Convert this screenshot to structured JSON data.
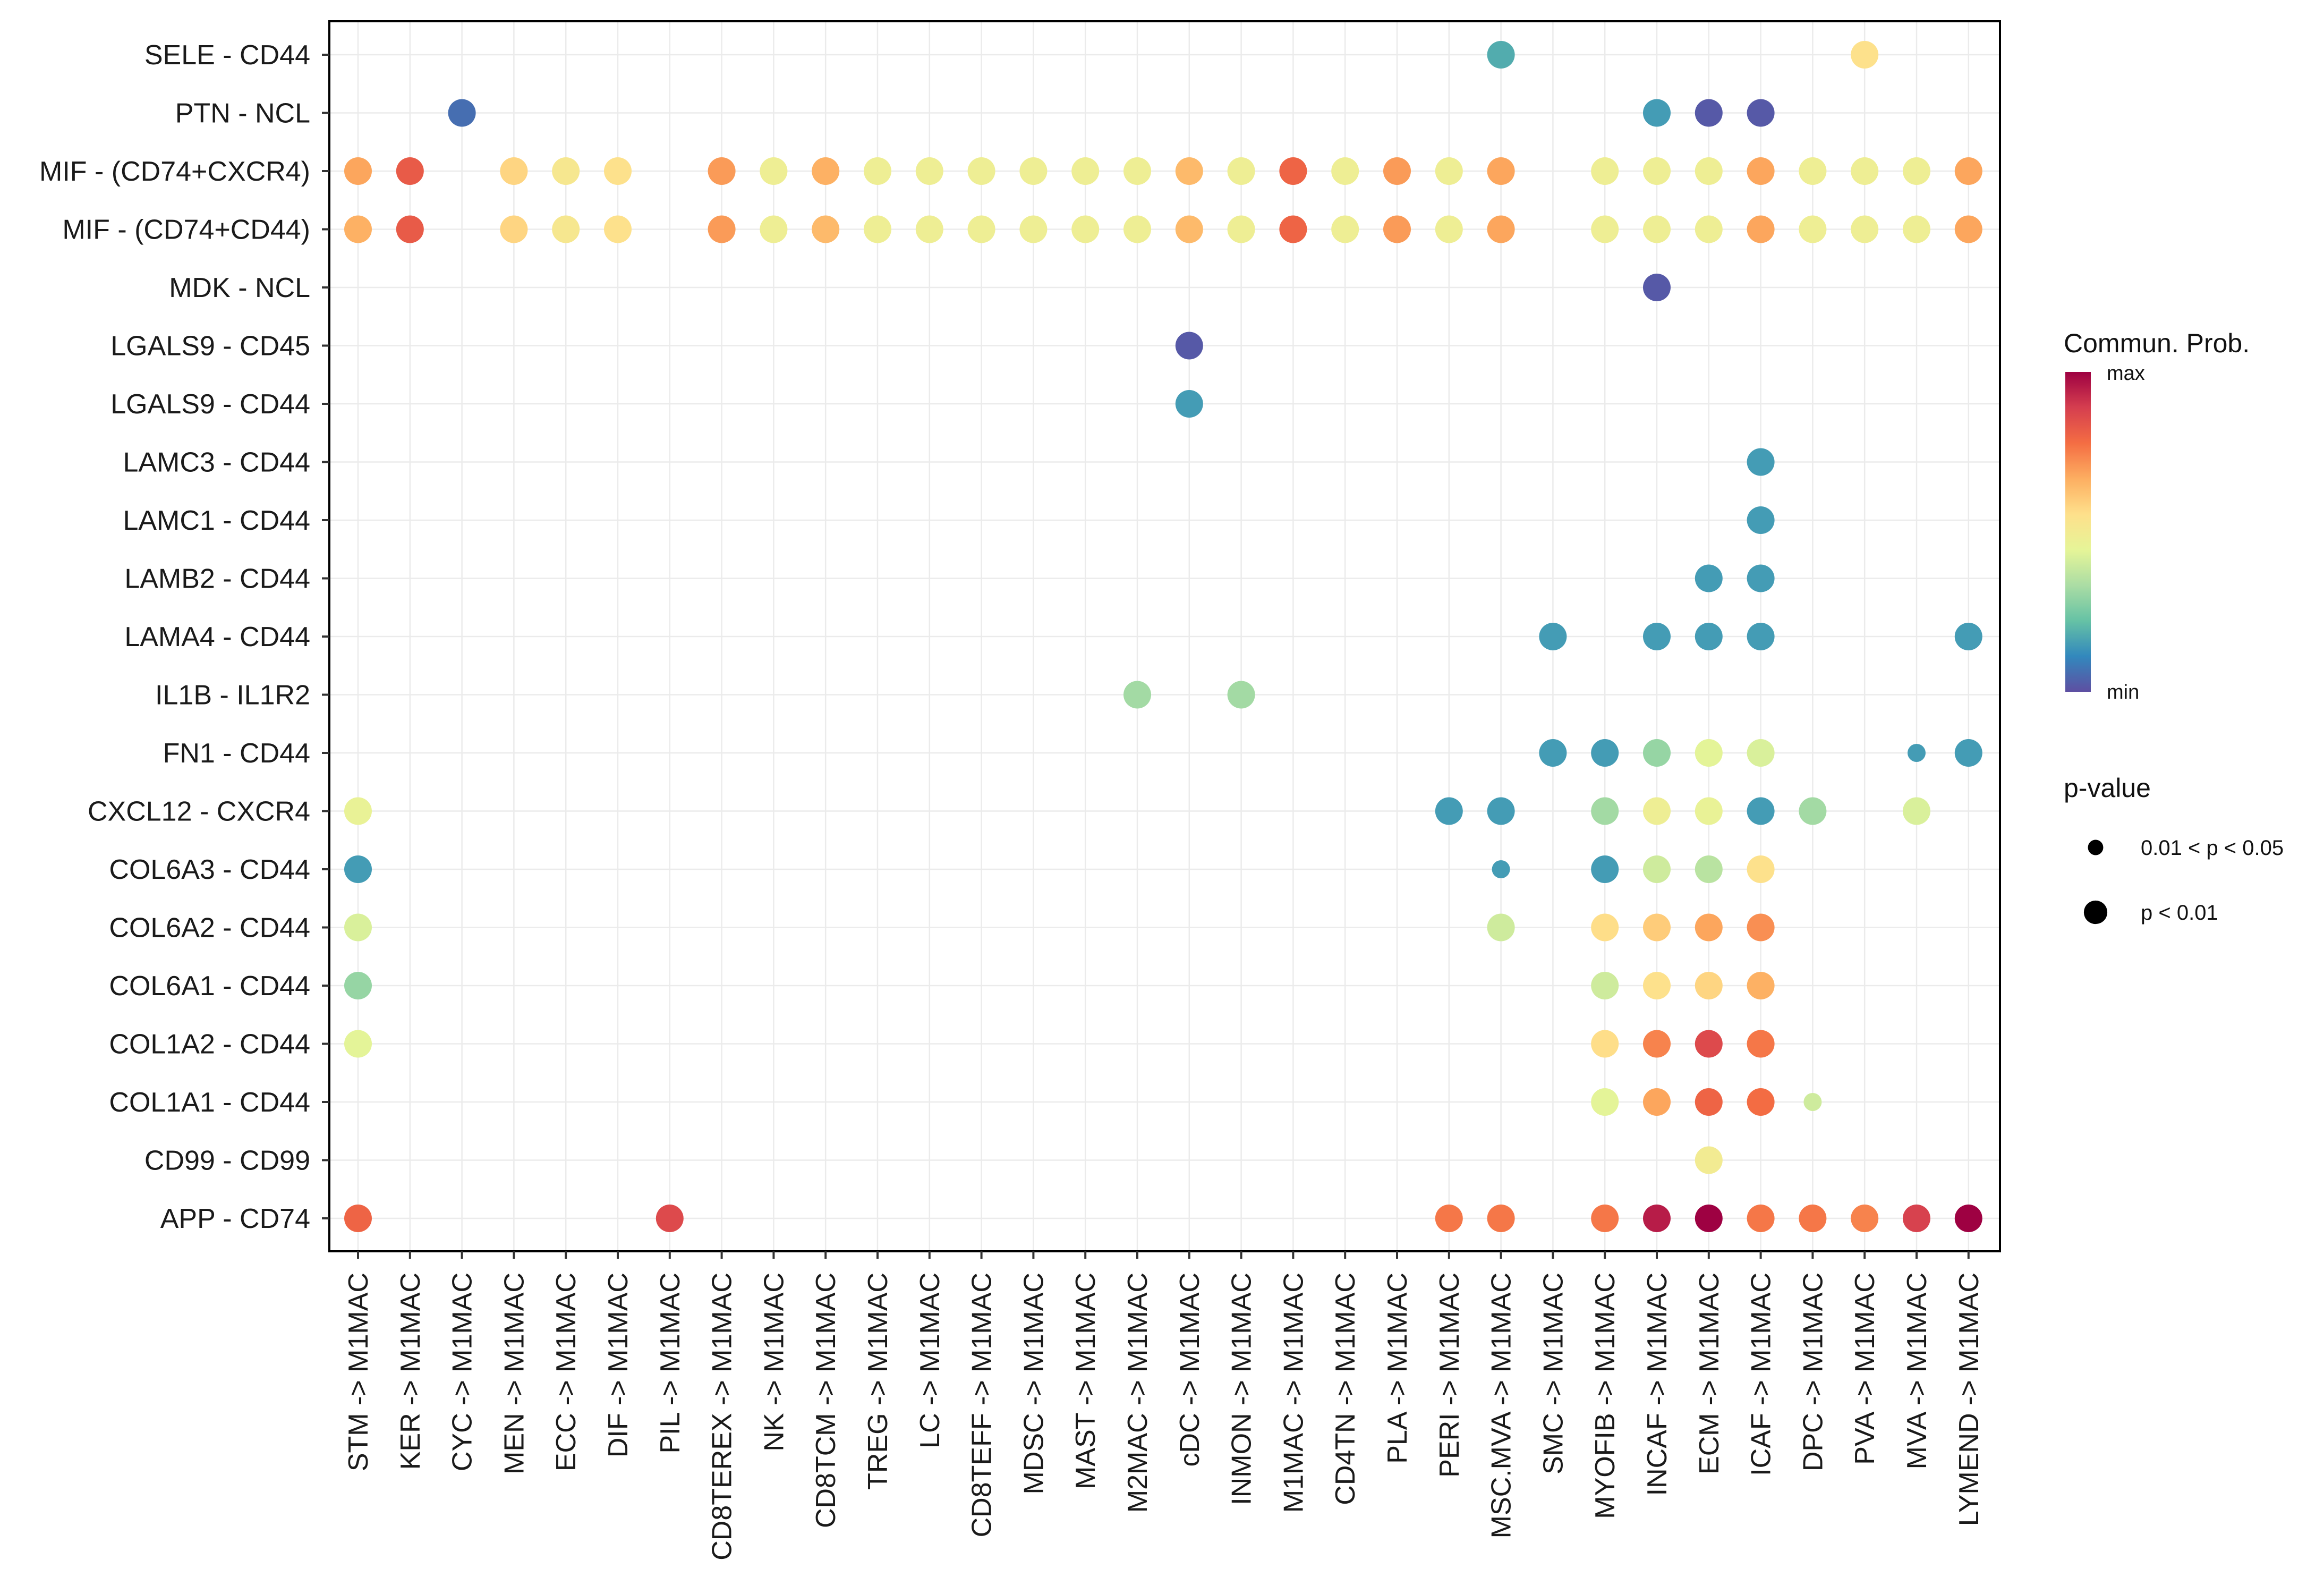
{
  "chart_data": {
    "type": "scatter",
    "subtype": "dot-plot",
    "x_categories": [
      "STM -> M1MAC",
      "KER -> M1MAC",
      "CYC -> M1MAC",
      "MEN -> M1MAC",
      "ECC -> M1MAC",
      "DIF -> M1MAC",
      "PIL -> M1MAC",
      "CD8TEREX -> M1MAC",
      "NK -> M1MAC",
      "CD8TCM -> M1MAC",
      "TREG -> M1MAC",
      "LC -> M1MAC",
      "CD8TEFF -> M1MAC",
      "MDSC -> M1MAC",
      "MAST -> M1MAC",
      "M2MAC -> M1MAC",
      "cDC -> M1MAC",
      "INMON -> M1MAC",
      "M1MAC -> M1MAC",
      "CD4TN -> M1MAC",
      "PLA -> M1MAC",
      "PERI -> M1MAC",
      "MSC.MVA -> M1MAC",
      "SMC -> M1MAC",
      "MYOFIB -> M1MAC",
      "INCAF -> M1MAC",
      "ECM -> M1MAC",
      "ICAF -> M1MAC",
      "DPC -> M1MAC",
      "PVA -> M1MAC",
      "MVA -> M1MAC",
      "LYMEND -> M1MAC"
    ],
    "y_categories": [
      "APP - CD74",
      "CD99 - CD99",
      "COL1A1 - CD44",
      "COL1A2 - CD44",
      "COL6A1 - CD44",
      "COL6A2 - CD44",
      "COL6A3 - CD44",
      "CXCL12 - CXCR4",
      "FN1 - CD44",
      "IL1B - IL1R2",
      "LAMA4 - CD44",
      "LAMB2 - CD44",
      "LAMC1 - CD44",
      "LAMC3 - CD44",
      "LGALS9 - CD44",
      "LGALS9 - CD45",
      "MDK - NCL",
      "MIF - (CD74+CD44)",
      "MIF - (CD74+CXCR4)",
      "PTN - NCL",
      "SELE - CD44"
    ],
    "points": [
      {
        "row": 20,
        "col": 22,
        "prob": 0.18,
        "p": 2
      },
      {
        "row": 20,
        "col": 29,
        "prob": 0.55,
        "p": 2
      },
      {
        "row": 19,
        "col": 2,
        "prob": 0.06,
        "p": 2
      },
      {
        "row": 19,
        "col": 25,
        "prob": 0.15,
        "p": 2
      },
      {
        "row": 19,
        "col": 26,
        "prob": 0.02,
        "p": 2
      },
      {
        "row": 19,
        "col": 27,
        "prob": 0.02,
        "p": 2
      },
      {
        "row": 18,
        "col": 0,
        "prob": 0.68,
        "p": 2
      },
      {
        "row": 18,
        "col": 1,
        "prob": 0.82,
        "p": 2
      },
      {
        "row": 18,
        "col": 3,
        "prob": 0.58,
        "p": 2
      },
      {
        "row": 18,
        "col": 4,
        "prob": 0.52,
        "p": 2
      },
      {
        "row": 18,
        "col": 5,
        "prob": 0.55,
        "p": 2
      },
      {
        "row": 18,
        "col": 7,
        "prob": 0.7,
        "p": 2
      },
      {
        "row": 18,
        "col": 8,
        "prob": 0.48,
        "p": 2
      },
      {
        "row": 18,
        "col": 9,
        "prob": 0.66,
        "p": 2
      },
      {
        "row": 18,
        "col": 10,
        "prob": 0.48,
        "p": 2
      },
      {
        "row": 18,
        "col": 11,
        "prob": 0.48,
        "p": 2
      },
      {
        "row": 18,
        "col": 12,
        "prob": 0.48,
        "p": 2
      },
      {
        "row": 18,
        "col": 13,
        "prob": 0.48,
        "p": 2
      },
      {
        "row": 18,
        "col": 14,
        "prob": 0.48,
        "p": 2
      },
      {
        "row": 18,
        "col": 15,
        "prob": 0.48,
        "p": 2
      },
      {
        "row": 18,
        "col": 16,
        "prob": 0.64,
        "p": 2
      },
      {
        "row": 18,
        "col": 17,
        "prob": 0.48,
        "p": 2
      },
      {
        "row": 18,
        "col": 18,
        "prob": 0.8,
        "p": 2
      },
      {
        "row": 18,
        "col": 19,
        "prob": 0.48,
        "p": 2
      },
      {
        "row": 18,
        "col": 20,
        "prob": 0.7,
        "p": 2
      },
      {
        "row": 18,
        "col": 21,
        "prob": 0.48,
        "p": 2
      },
      {
        "row": 18,
        "col": 22,
        "prob": 0.68,
        "p": 2
      },
      {
        "row": 18,
        "col": 24,
        "prob": 0.48,
        "p": 2
      },
      {
        "row": 18,
        "col": 25,
        "prob": 0.48,
        "p": 2
      },
      {
        "row": 18,
        "col": 26,
        "prob": 0.48,
        "p": 2
      },
      {
        "row": 18,
        "col": 27,
        "prob": 0.68,
        "p": 2
      },
      {
        "row": 18,
        "col": 28,
        "prob": 0.48,
        "p": 2
      },
      {
        "row": 18,
        "col": 29,
        "prob": 0.48,
        "p": 2
      },
      {
        "row": 18,
        "col": 30,
        "prob": 0.48,
        "p": 2
      },
      {
        "row": 18,
        "col": 31,
        "prob": 0.68,
        "p": 2
      },
      {
        "row": 17,
        "col": 0,
        "prob": 0.66,
        "p": 2
      },
      {
        "row": 17,
        "col": 1,
        "prob": 0.82,
        "p": 2
      },
      {
        "row": 17,
        "col": 3,
        "prob": 0.58,
        "p": 2
      },
      {
        "row": 17,
        "col": 4,
        "prob": 0.52,
        "p": 2
      },
      {
        "row": 17,
        "col": 5,
        "prob": 0.55,
        "p": 2
      },
      {
        "row": 17,
        "col": 7,
        "prob": 0.7,
        "p": 2
      },
      {
        "row": 17,
        "col": 8,
        "prob": 0.48,
        "p": 2
      },
      {
        "row": 17,
        "col": 9,
        "prob": 0.64,
        "p": 2
      },
      {
        "row": 17,
        "col": 10,
        "prob": 0.48,
        "p": 2
      },
      {
        "row": 17,
        "col": 11,
        "prob": 0.48,
        "p": 2
      },
      {
        "row": 17,
        "col": 12,
        "prob": 0.48,
        "p": 2
      },
      {
        "row": 17,
        "col": 13,
        "prob": 0.48,
        "p": 2
      },
      {
        "row": 17,
        "col": 14,
        "prob": 0.48,
        "p": 2
      },
      {
        "row": 17,
        "col": 15,
        "prob": 0.48,
        "p": 2
      },
      {
        "row": 17,
        "col": 16,
        "prob": 0.64,
        "p": 2
      },
      {
        "row": 17,
        "col": 17,
        "prob": 0.48,
        "p": 2
      },
      {
        "row": 17,
        "col": 18,
        "prob": 0.8,
        "p": 2
      },
      {
        "row": 17,
        "col": 19,
        "prob": 0.48,
        "p": 2
      },
      {
        "row": 17,
        "col": 20,
        "prob": 0.7,
        "p": 2
      },
      {
        "row": 17,
        "col": 21,
        "prob": 0.48,
        "p": 2
      },
      {
        "row": 17,
        "col": 22,
        "prob": 0.68,
        "p": 2
      },
      {
        "row": 17,
        "col": 24,
        "prob": 0.48,
        "p": 2
      },
      {
        "row": 17,
        "col": 25,
        "prob": 0.48,
        "p": 2
      },
      {
        "row": 17,
        "col": 26,
        "prob": 0.48,
        "p": 2
      },
      {
        "row": 17,
        "col": 27,
        "prob": 0.68,
        "p": 2
      },
      {
        "row": 17,
        "col": 28,
        "prob": 0.48,
        "p": 2
      },
      {
        "row": 17,
        "col": 29,
        "prob": 0.48,
        "p": 2
      },
      {
        "row": 17,
        "col": 30,
        "prob": 0.48,
        "p": 2
      },
      {
        "row": 17,
        "col": 31,
        "prob": 0.68,
        "p": 2
      },
      {
        "row": 16,
        "col": 25,
        "prob": 0.02,
        "p": 2
      },
      {
        "row": 15,
        "col": 16,
        "prob": 0.02,
        "p": 2
      },
      {
        "row": 14,
        "col": 16,
        "prob": 0.15,
        "p": 2
      },
      {
        "row": 13,
        "col": 27,
        "prob": 0.15,
        "p": 2
      },
      {
        "row": 12,
        "col": 27,
        "prob": 0.15,
        "p": 2
      },
      {
        "row": 11,
        "col": 26,
        "prob": 0.15,
        "p": 2
      },
      {
        "row": 11,
        "col": 27,
        "prob": 0.15,
        "p": 2
      },
      {
        "row": 10,
        "col": 23,
        "prob": 0.15,
        "p": 2
      },
      {
        "row": 10,
        "col": 25,
        "prob": 0.15,
        "p": 2
      },
      {
        "row": 10,
        "col": 26,
        "prob": 0.15,
        "p": 2
      },
      {
        "row": 10,
        "col": 27,
        "prob": 0.15,
        "p": 2
      },
      {
        "row": 10,
        "col": 31,
        "prob": 0.15,
        "p": 2
      },
      {
        "row": 9,
        "col": 15,
        "prob": 0.32,
        "p": 2
      },
      {
        "row": 9,
        "col": 17,
        "prob": 0.32,
        "p": 2
      },
      {
        "row": 8,
        "col": 23,
        "prob": 0.15,
        "p": 2
      },
      {
        "row": 8,
        "col": 24,
        "prob": 0.15,
        "p": 2
      },
      {
        "row": 8,
        "col": 25,
        "prob": 0.3,
        "p": 2
      },
      {
        "row": 8,
        "col": 26,
        "prob": 0.44,
        "p": 2
      },
      {
        "row": 8,
        "col": 27,
        "prob": 0.42,
        "p": 2
      },
      {
        "row": 8,
        "col": 30,
        "prob": 0.15,
        "p": 1
      },
      {
        "row": 8,
        "col": 31,
        "prob": 0.15,
        "p": 2
      },
      {
        "row": 7,
        "col": 0,
        "prob": 0.46,
        "p": 2
      },
      {
        "row": 7,
        "col": 21,
        "prob": 0.15,
        "p": 2
      },
      {
        "row": 7,
        "col": 22,
        "prob": 0.15,
        "p": 2
      },
      {
        "row": 7,
        "col": 24,
        "prob": 0.32,
        "p": 2
      },
      {
        "row": 7,
        "col": 25,
        "prob": 0.48,
        "p": 2
      },
      {
        "row": 7,
        "col": 26,
        "prob": 0.46,
        "p": 2
      },
      {
        "row": 7,
        "col": 27,
        "prob": 0.15,
        "p": 2
      },
      {
        "row": 7,
        "col": 28,
        "prob": 0.32,
        "p": 2
      },
      {
        "row": 7,
        "col": 30,
        "prob": 0.42,
        "p": 2
      },
      {
        "row": 6,
        "col": 0,
        "prob": 0.15,
        "p": 2
      },
      {
        "row": 6,
        "col": 22,
        "prob": 0.15,
        "p": 1
      },
      {
        "row": 6,
        "col": 24,
        "prob": 0.15,
        "p": 2
      },
      {
        "row": 6,
        "col": 25,
        "prob": 0.4,
        "p": 2
      },
      {
        "row": 6,
        "col": 26,
        "prob": 0.36,
        "p": 2
      },
      {
        "row": 6,
        "col": 27,
        "prob": 0.55,
        "p": 2
      },
      {
        "row": 5,
        "col": 0,
        "prob": 0.42,
        "p": 2
      },
      {
        "row": 5,
        "col": 22,
        "prob": 0.4,
        "p": 2
      },
      {
        "row": 5,
        "col": 24,
        "prob": 0.56,
        "p": 2
      },
      {
        "row": 5,
        "col": 25,
        "prob": 0.6,
        "p": 2
      },
      {
        "row": 5,
        "col": 26,
        "prob": 0.68,
        "p": 2
      },
      {
        "row": 5,
        "col": 27,
        "prob": 0.72,
        "p": 2
      },
      {
        "row": 4,
        "col": 0,
        "prob": 0.3,
        "p": 2
      },
      {
        "row": 4,
        "col": 24,
        "prob": 0.4,
        "p": 2
      },
      {
        "row": 4,
        "col": 25,
        "prob": 0.55,
        "p": 2
      },
      {
        "row": 4,
        "col": 26,
        "prob": 0.58,
        "p": 2
      },
      {
        "row": 4,
        "col": 27,
        "prob": 0.66,
        "p": 2
      },
      {
        "row": 3,
        "col": 0,
        "prob": 0.44,
        "p": 2
      },
      {
        "row": 3,
        "col": 24,
        "prob": 0.56,
        "p": 2
      },
      {
        "row": 3,
        "col": 25,
        "prob": 0.74,
        "p": 2
      },
      {
        "row": 3,
        "col": 26,
        "prob": 0.86,
        "p": 2
      },
      {
        "row": 3,
        "col": 27,
        "prob": 0.76,
        "p": 2
      },
      {
        "row": 2,
        "col": 24,
        "prob": 0.44,
        "p": 2
      },
      {
        "row": 2,
        "col": 25,
        "prob": 0.68,
        "p": 2
      },
      {
        "row": 2,
        "col": 26,
        "prob": 0.8,
        "p": 2
      },
      {
        "row": 2,
        "col": 27,
        "prob": 0.78,
        "p": 2
      },
      {
        "row": 2,
        "col": 28,
        "prob": 0.4,
        "p": 1
      },
      {
        "row": 1,
        "col": 26,
        "prob": 0.5,
        "p": 2
      },
      {
        "row": 0,
        "col": 0,
        "prob": 0.8,
        "p": 2
      },
      {
        "row": 0,
        "col": 6,
        "prob": 0.86,
        "p": 2
      },
      {
        "row": 0,
        "col": 21,
        "prob": 0.76,
        "p": 2
      },
      {
        "row": 0,
        "col": 22,
        "prob": 0.76,
        "p": 2
      },
      {
        "row": 0,
        "col": 24,
        "prob": 0.76,
        "p": 2
      },
      {
        "row": 0,
        "col": 25,
        "prob": 0.95,
        "p": 2
      },
      {
        "row": 0,
        "col": 26,
        "prob": 1.0,
        "p": 2
      },
      {
        "row": 0,
        "col": 27,
        "prob": 0.76,
        "p": 2
      },
      {
        "row": 0,
        "col": 28,
        "prob": 0.76,
        "p": 2
      },
      {
        "row": 0,
        "col": 29,
        "prob": 0.74,
        "p": 2
      },
      {
        "row": 0,
        "col": 30,
        "prob": 0.88,
        "p": 2
      },
      {
        "row": 0,
        "col": 31,
        "prob": 1.0,
        "p": 2
      }
    ],
    "colorscale": {
      "title": "Commun. Prob.",
      "max_label": "max",
      "min_label": "min",
      "stops": [
        "#5E4FA2",
        "#3288BD",
        "#66C2A5",
        "#ABDDA4",
        "#E6F598",
        "#FEE08B",
        "#FDAE61",
        "#F46D43",
        "#D53E4F",
        "#9E0142"
      ]
    },
    "size_legend": {
      "title": "p-value",
      "entries": [
        {
          "label": "0.01 < p < 0.05",
          "p": 1
        },
        {
          "label": "p < 0.01",
          "p": 2
        }
      ]
    },
    "grid": true
  }
}
